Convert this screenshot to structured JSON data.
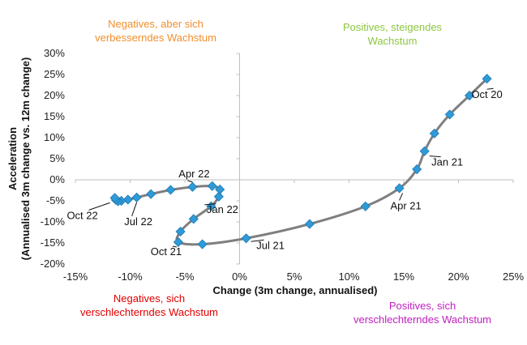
{
  "colors": {
    "line": "#7f7f7f",
    "marker": "#2e9bd6",
    "marker_stroke": "#1f77b4",
    "axis": "#bfbfbf",
    "q_top_left": "#f28e2b",
    "q_top_right": "#8cc63f",
    "q_bottom_left": "#e00000",
    "q_bottom_right": "#c020c0"
  },
  "chart_data": {
    "type": "scatter",
    "xlabel": "Change (3m change, annualised)",
    "ylabel_lines": [
      "Acceleration",
      "(Annualised 3m change vs. 12m change)"
    ],
    "xlim": [
      -15,
      25
    ],
    "ylim": [
      -20,
      30
    ],
    "x_ticks": [
      -15,
      -10,
      -5,
      0,
      5,
      10,
      15,
      20,
      25
    ],
    "x_tick_labels": [
      "-15%",
      "-10%",
      "-5%",
      "0%",
      "5%",
      "10%",
      "15%",
      "20%",
      "25%"
    ],
    "y_ticks": [
      30,
      25,
      20,
      15,
      10,
      5,
      0,
      -5,
      -10,
      -15,
      -20
    ],
    "y_tick_labels": [
      "30%",
      "25%",
      "20%",
      "15%",
      "10%",
      "5%",
      "0%",
      "-5%",
      "-10%",
      "-15%",
      "-20%"
    ],
    "grid": false,
    "connected_line": true,
    "points": [
      {
        "x": 22.6,
        "y": 24.0,
        "label": "Oct 20"
      },
      {
        "x": 21.0,
        "y": 20.0
      },
      {
        "x": 19.2,
        "y": 15.5
      },
      {
        "x": 17.8,
        "y": 11.0
      },
      {
        "x": 16.9,
        "y": 6.8,
        "label": "Jan 21"
      },
      {
        "x": 16.2,
        "y": 2.5
      },
      {
        "x": 14.6,
        "y": -2.0,
        "label": "Apr 21"
      },
      {
        "x": 11.5,
        "y": -6.3
      },
      {
        "x": 6.4,
        "y": -10.5
      },
      {
        "x": 0.6,
        "y": -13.9,
        "label": "Jul 21"
      },
      {
        "x": -3.4,
        "y": -15.3
      },
      {
        "x": -5.6,
        "y": -14.8,
        "label": "Oct 21"
      },
      {
        "x": -5.4,
        "y": -12.3
      },
      {
        "x": -4.2,
        "y": -9.3
      },
      {
        "x": -2.6,
        "y": -6.3,
        "label": "Jan 22"
      },
      {
        "x": -1.9,
        "y": -4.0
      },
      {
        "x": -1.8,
        "y": -2.3
      },
      {
        "x": -2.5,
        "y": -1.5
      },
      {
        "x": -4.3,
        "y": -1.7,
        "label": "Apr 22"
      },
      {
        "x": -6.3,
        "y": -2.4
      },
      {
        "x": -8.1,
        "y": -3.4
      },
      {
        "x": -9.4,
        "y": -4.2,
        "label": "Jul 22"
      },
      {
        "x": -10.2,
        "y": -4.7
      },
      {
        "x": -10.8,
        "y": -5.0
      },
      {
        "x": -11.1,
        "y": -5.1
      },
      {
        "x": -11.3,
        "y": -4.8
      },
      {
        "x": -11.4,
        "y": -4.3,
        "label": "Oct 22"
      }
    ],
    "annotations": [
      {
        "id": "q_top_left",
        "lines": [
          "Negatives, aber sich",
          "verbesserndes Wachstum"
        ]
      },
      {
        "id": "q_top_right",
        "lines": [
          "Positives, steigendes",
          "Wachstum"
        ]
      },
      {
        "id": "q_bottom_left",
        "lines": [
          "Negatives, sich",
          "verschlechterndes Wachstum"
        ]
      },
      {
        "id": "q_bottom_right",
        "lines": [
          "Positives, sich",
          "verschlechterndes Wachstum"
        ]
      }
    ]
  }
}
